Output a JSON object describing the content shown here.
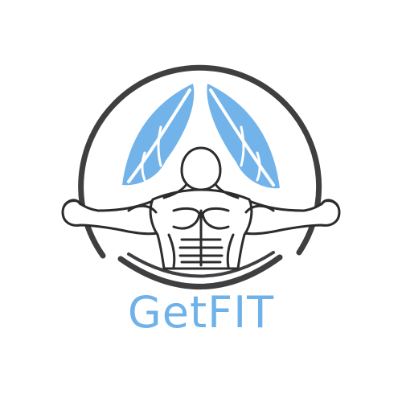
{
  "logo": {
    "brand_name": "GetFIT",
    "icon": "flexing-bodybuilder-emblem-icon",
    "colors": {
      "accent": "#6fb2ea",
      "ring": "#3f3f41",
      "figure_stroke": "#2c2c2e",
      "background": "#ffffff"
    }
  }
}
